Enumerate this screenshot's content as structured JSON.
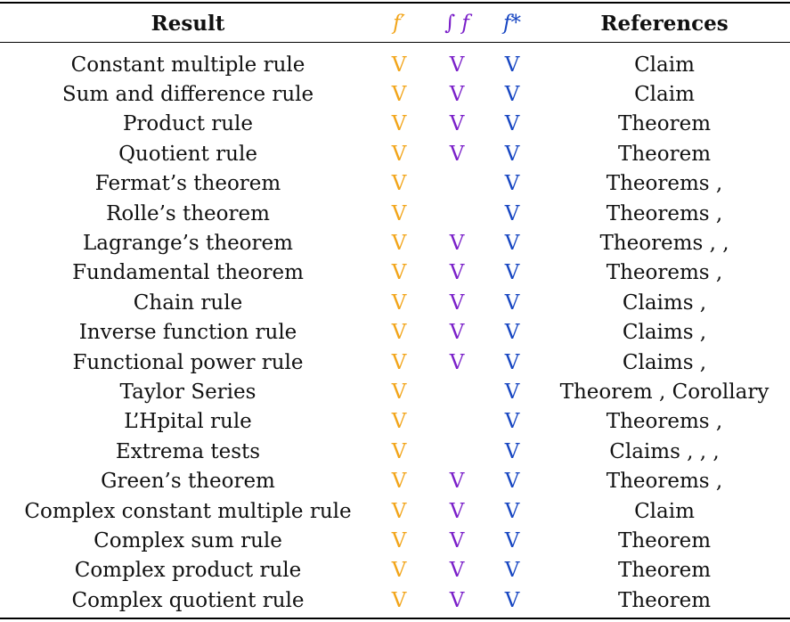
{
  "colors": {
    "f_prime": "#F2A51A",
    "integral": "#7A1FC9",
    "f_star": "#1746C2"
  },
  "header": {
    "result": "Result",
    "f_prime": "f′",
    "integral": "∫ f",
    "f_star": "f*",
    "references": "References"
  },
  "rows": [
    {
      "result": "Constant multiple rule",
      "f_prime": "V",
      "integral": "V",
      "f_star": "V",
      "references": "Claim"
    },
    {
      "result": "Sum and difference rule",
      "f_prime": "V",
      "integral": "V",
      "f_star": "V",
      "references": "Claim"
    },
    {
      "result": "Product rule",
      "f_prime": "V",
      "integral": "V",
      "f_star": "V",
      "references": "Theorem"
    },
    {
      "result": "Quotient rule",
      "f_prime": "V",
      "integral": "V",
      "f_star": "V",
      "references": "Theorem"
    },
    {
      "result": "Fermat’s theorem",
      "f_prime": "V",
      "integral": "",
      "f_star": "V",
      "references": "Theorems ,"
    },
    {
      "result": "Rolle’s theorem",
      "f_prime": "V",
      "integral": "",
      "f_star": "V",
      "references": "Theorems ,"
    },
    {
      "result": "Lagrange’s theorem",
      "f_prime": "V",
      "integral": "V",
      "f_star": "V",
      "references": "Theorems , ,"
    },
    {
      "result": "Fundamental theorem",
      "f_prime": "V",
      "integral": "V",
      "f_star": "V",
      "references": "Theorems ,"
    },
    {
      "result": "Chain rule",
      "f_prime": "V",
      "integral": "V",
      "f_star": "V",
      "references": "Claims ,"
    },
    {
      "result": "Inverse function rule",
      "f_prime": "V",
      "integral": "V",
      "f_star": "V",
      "references": "Claims ,"
    },
    {
      "result": "Functional power rule",
      "f_prime": "V",
      "integral": "V",
      "f_star": "V",
      "references": "Claims ,"
    },
    {
      "result": "Taylor Series",
      "f_prime": "V",
      "integral": "",
      "f_star": "V",
      "references": "Theorem , Corollary"
    },
    {
      "result": "L’Hpital rule",
      "f_prime": "V",
      "integral": "",
      "f_star": "V",
      "references": "Theorems ,"
    },
    {
      "result": "Extrema tests",
      "f_prime": "V",
      "integral": "",
      "f_star": "V",
      "references": "Claims , , ,"
    },
    {
      "result": "Green’s theorem",
      "f_prime": "V",
      "integral": "V",
      "f_star": "V",
      "references": "Theorems ,"
    },
    {
      "result": "Complex constant multiple rule",
      "f_prime": "V",
      "integral": "V",
      "f_star": "V",
      "references": "Claim"
    },
    {
      "result": "Complex sum rule",
      "f_prime": "V",
      "integral": "V",
      "f_star": "V",
      "references": "Theorem"
    },
    {
      "result": "Complex product rule",
      "f_prime": "V",
      "integral": "V",
      "f_star": "V",
      "references": "Theorem"
    },
    {
      "result": "Complex quotient rule",
      "f_prime": "V",
      "integral": "V",
      "f_star": "V",
      "references": "Theorem"
    }
  ]
}
